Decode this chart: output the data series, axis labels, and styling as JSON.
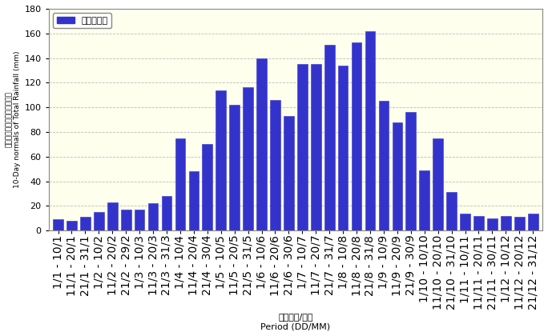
{
  "categories": [
    "1/1 - 10/1",
    "11/1 - 20/1",
    "21/1 - 31/1",
    "1/2 - 10/2",
    "11/2 - 20/2",
    "21/2 - 29/2",
    "1/3 - 10/3",
    "11/3 - 20/3",
    "21/3 - 31/3",
    "1/4 - 10/4",
    "11/4 - 20/4",
    "21/4 - 30/4",
    "1/5 - 10/5",
    "11/5 - 20/5",
    "21/5 - 31/5",
    "1/6 - 10/6",
    "11/6 - 20/6",
    "21/6 - 30/6",
    "1/7 - 10/7",
    "11/7 - 20/7",
    "21/7 - 31/7",
    "1/8 - 10/8",
    "11/8 - 20/8",
    "21/8 - 31/8",
    "1/9 - 10/9",
    "11/9 - 20/9",
    "21/9 - 30/9",
    "1/10 - 10/10",
    "11/10 - 20/10",
    "21/10 - 31/10",
    "1/11 - 10/11",
    "11/11 - 20/11",
    "21/11 - 30/11",
    "1/12 - 10/12",
    "11/12 - 20/12",
    "21/12 - 31/12"
  ],
  "values": [
    9,
    8,
    11,
    15,
    23,
    17,
    17,
    22,
    28,
    75,
    48,
    70,
    114,
    102,
    116,
    140,
    106,
    93,
    135,
    135,
    151,
    134,
    153,
    162,
    105,
    88,
    96,
    49,
    75,
    31,
    14,
    12,
    10,
    12,
    11,
    14
  ],
  "bar_color": "#3333cc",
  "bar_edge_color": "#3333cc",
  "plot_bg_color": "#ffffee",
  "outer_bg_color": "#ffffff",
  "ylabel_zh": "總雨量的十天平均値（毫米）",
  "ylabel_en": "10-Day normals of Total Rainfall (mm)",
  "xlabel_zh": "期間（日/月）",
  "xlabel_en": "Period (DD/MM)",
  "legend_label": "平均總雨量",
  "ylim": [
    0,
    180
  ],
  "yticks": [
    0,
    20,
    40,
    60,
    80,
    100,
    120,
    140,
    160,
    180
  ]
}
